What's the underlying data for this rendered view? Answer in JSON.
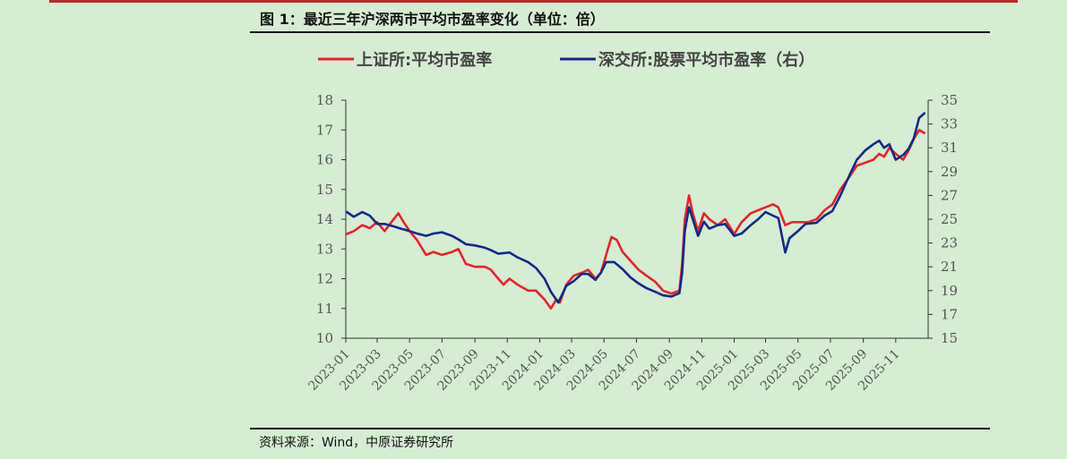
{
  "figure": {
    "title": "图 1：最近三年沪深两市平均市盈率变化（单位：倍）",
    "source": "资料来源：Wind，中原证券研究所"
  },
  "colors": {
    "sse": "#e0262b",
    "szse": "#102a85",
    "background": "#d6ecd3"
  },
  "chart_data": {
    "type": "line",
    "legend_position": "top",
    "grid": false,
    "x_ticks": [
      "2023-01",
      "2023-03",
      "2023-05",
      "2023-07",
      "2023-09",
      "2023-11",
      "2024-01",
      "2024-03",
      "2024-05",
      "2024-07",
      "2024-09",
      "2024-11",
      "2025-01",
      "2025-03",
      "2025-05",
      "2025-07",
      "2025-09",
      "2025-11"
    ],
    "y_left": {
      "min": 10,
      "max": 18,
      "ticks": [
        10,
        11,
        12,
        13,
        14,
        15,
        16,
        17,
        18
      ]
    },
    "y_right": {
      "min": 15,
      "max": 35,
      "ticks": [
        15,
        17,
        19,
        21,
        23,
        25,
        27,
        29,
        31,
        33,
        35
      ]
    },
    "series": [
      {
        "name": "上证所:平均市盈率",
        "axis": "left",
        "points": [
          [
            "2023-01-03",
            13.5
          ],
          [
            "2023-01-16",
            13.6
          ],
          [
            "2023-02-01",
            13.8
          ],
          [
            "2023-02-15",
            13.7
          ],
          [
            "2023-03-01",
            13.9
          ],
          [
            "2023-03-15",
            13.6
          ],
          [
            "2023-04-01",
            14.0
          ],
          [
            "2023-04-10",
            14.2
          ],
          [
            "2023-04-20",
            13.9
          ],
          [
            "2023-05-01",
            13.6
          ],
          [
            "2023-05-15",
            13.3
          ],
          [
            "2023-06-01",
            12.8
          ],
          [
            "2023-06-15",
            12.9
          ],
          [
            "2023-07-01",
            12.8
          ],
          [
            "2023-07-20",
            12.9
          ],
          [
            "2023-08-01",
            13.0
          ],
          [
            "2023-08-15",
            12.5
          ],
          [
            "2023-09-01",
            12.4
          ],
          [
            "2023-09-20",
            12.4
          ],
          [
            "2023-10-01",
            12.3
          ],
          [
            "2023-10-15",
            12.0
          ],
          [
            "2023-10-25",
            11.8
          ],
          [
            "2023-11-05",
            12.0
          ],
          [
            "2023-11-20",
            11.8
          ],
          [
            "2023-12-10",
            11.6
          ],
          [
            "2023-12-25",
            11.6
          ],
          [
            "2024-01-10",
            11.3
          ],
          [
            "2024-01-22",
            11.0
          ],
          [
            "2024-02-01",
            11.3
          ],
          [
            "2024-02-08",
            11.2
          ],
          [
            "2024-02-20",
            11.8
          ],
          [
            "2024-03-05",
            12.1
          ],
          [
            "2024-03-20",
            12.2
          ],
          [
            "2024-04-01",
            12.3
          ],
          [
            "2024-04-15",
            12.0
          ],
          [
            "2024-04-25",
            12.2
          ],
          [
            "2024-05-05",
            12.8
          ],
          [
            "2024-05-15",
            13.4
          ],
          [
            "2024-05-25",
            13.3
          ],
          [
            "2024-06-05",
            12.9
          ],
          [
            "2024-06-20",
            12.6
          ],
          [
            "2024-07-05",
            12.3
          ],
          [
            "2024-07-20",
            12.1
          ],
          [
            "2024-08-05",
            11.9
          ],
          [
            "2024-08-20",
            11.6
          ],
          [
            "2024-09-05",
            11.5
          ],
          [
            "2024-09-20",
            11.6
          ],
          [
            "2024-09-25",
            12.5
          ],
          [
            "2024-09-30",
            14.0
          ],
          [
            "2024-10-08",
            14.8
          ],
          [
            "2024-10-15",
            14.2
          ],
          [
            "2024-10-25",
            13.6
          ],
          [
            "2024-11-05",
            14.2
          ],
          [
            "2024-11-15",
            14.0
          ],
          [
            "2024-12-01",
            13.8
          ],
          [
            "2024-12-15",
            14.0
          ],
          [
            "2025-01-01",
            13.5
          ],
          [
            "2025-01-15",
            13.9
          ],
          [
            "2025-02-01",
            14.2
          ],
          [
            "2025-02-15",
            14.3
          ],
          [
            "2025-03-01",
            14.4
          ],
          [
            "2025-03-15",
            14.5
          ],
          [
            "2025-03-25",
            14.4
          ],
          [
            "2025-04-07",
            13.8
          ],
          [
            "2025-04-20",
            13.9
          ],
          [
            "2025-05-05",
            13.9
          ],
          [
            "2025-05-20",
            13.9
          ],
          [
            "2025-06-05",
            14.0
          ],
          [
            "2025-06-20",
            14.3
          ],
          [
            "2025-07-05",
            14.5
          ],
          [
            "2025-07-20",
            15.0
          ],
          [
            "2025-08-05",
            15.4
          ],
          [
            "2025-08-20",
            15.8
          ],
          [
            "2025-09-05",
            15.9
          ],
          [
            "2025-09-20",
            16.0
          ],
          [
            "2025-10-01",
            16.2
          ],
          [
            "2025-10-10",
            16.1
          ],
          [
            "2025-10-20",
            16.4
          ],
          [
            "2025-11-01",
            16.2
          ],
          [
            "2025-11-15",
            16.0
          ],
          [
            "2025-11-25",
            16.3
          ],
          [
            "2025-12-05",
            16.7
          ],
          [
            "2025-12-15",
            17.0
          ],
          [
            "2025-12-25",
            16.9
          ]
        ]
      },
      {
        "name": "深交所:股票平均市盈率（右）",
        "axis": "right",
        "points": [
          [
            "2023-01-03",
            25.6
          ],
          [
            "2023-01-16",
            25.2
          ],
          [
            "2023-02-01",
            25.6
          ],
          [
            "2023-02-15",
            25.3
          ],
          [
            "2023-03-01",
            24.6
          ],
          [
            "2023-03-15",
            24.6
          ],
          [
            "2023-04-01",
            24.4
          ],
          [
            "2023-04-15",
            24.2
          ],
          [
            "2023-05-01",
            24.0
          ],
          [
            "2023-05-15",
            23.8
          ],
          [
            "2023-06-01",
            23.6
          ],
          [
            "2023-06-15",
            23.8
          ],
          [
            "2023-07-01",
            23.9
          ],
          [
            "2023-07-20",
            23.6
          ],
          [
            "2023-08-01",
            23.3
          ],
          [
            "2023-08-15",
            22.9
          ],
          [
            "2023-09-01",
            22.8
          ],
          [
            "2023-09-20",
            22.6
          ],
          [
            "2023-10-01",
            22.4
          ],
          [
            "2023-10-15",
            22.1
          ],
          [
            "2023-11-05",
            22.2
          ],
          [
            "2023-11-20",
            21.8
          ],
          [
            "2023-12-10",
            21.4
          ],
          [
            "2023-12-25",
            20.9
          ],
          [
            "2024-01-10",
            20.0
          ],
          [
            "2024-01-22",
            18.9
          ],
          [
            "2024-02-05",
            18.0
          ],
          [
            "2024-02-20",
            19.4
          ],
          [
            "2024-03-05",
            19.8
          ],
          [
            "2024-03-20",
            20.4
          ],
          [
            "2024-04-01",
            20.4
          ],
          [
            "2024-04-15",
            19.9
          ],
          [
            "2024-04-25",
            20.5
          ],
          [
            "2024-05-05",
            21.4
          ],
          [
            "2024-05-20",
            21.4
          ],
          [
            "2024-06-05",
            20.8
          ],
          [
            "2024-06-20",
            20.1
          ],
          [
            "2024-07-05",
            19.6
          ],
          [
            "2024-07-20",
            19.2
          ],
          [
            "2024-08-05",
            18.9
          ],
          [
            "2024-08-20",
            18.6
          ],
          [
            "2024-09-05",
            18.5
          ],
          [
            "2024-09-20",
            18.8
          ],
          [
            "2024-09-25",
            20.5
          ],
          [
            "2024-09-30",
            24.0
          ],
          [
            "2024-10-08",
            26.0
          ],
          [
            "2024-10-15",
            25.0
          ],
          [
            "2024-10-25",
            23.6
          ],
          [
            "2024-11-05",
            24.8
          ],
          [
            "2024-11-15",
            24.2
          ],
          [
            "2024-12-01",
            24.5
          ],
          [
            "2024-12-15",
            24.6
          ],
          [
            "2025-01-01",
            23.6
          ],
          [
            "2025-01-15",
            23.8
          ],
          [
            "2025-02-01",
            24.5
          ],
          [
            "2025-02-15",
            25.0
          ],
          [
            "2025-03-01",
            25.6
          ],
          [
            "2025-03-15",
            25.3
          ],
          [
            "2025-03-25",
            25.1
          ],
          [
            "2025-04-07",
            22.2
          ],
          [
            "2025-04-15",
            23.4
          ],
          [
            "2025-05-01",
            24.0
          ],
          [
            "2025-05-15",
            24.6
          ],
          [
            "2025-06-05",
            24.7
          ],
          [
            "2025-06-20",
            25.3
          ],
          [
            "2025-07-05",
            25.7
          ],
          [
            "2025-07-20",
            27.0
          ],
          [
            "2025-08-05",
            28.6
          ],
          [
            "2025-08-20",
            30.0
          ],
          [
            "2025-09-05",
            30.8
          ],
          [
            "2025-09-20",
            31.3
          ],
          [
            "2025-10-01",
            31.6
          ],
          [
            "2025-10-10",
            31.0
          ],
          [
            "2025-10-20",
            31.3
          ],
          [
            "2025-11-01",
            30.0
          ],
          [
            "2025-11-15",
            30.4
          ],
          [
            "2025-11-25",
            30.9
          ],
          [
            "2025-12-05",
            31.8
          ],
          [
            "2025-12-15",
            33.5
          ],
          [
            "2025-12-25",
            33.9
          ]
        ]
      }
    ]
  }
}
